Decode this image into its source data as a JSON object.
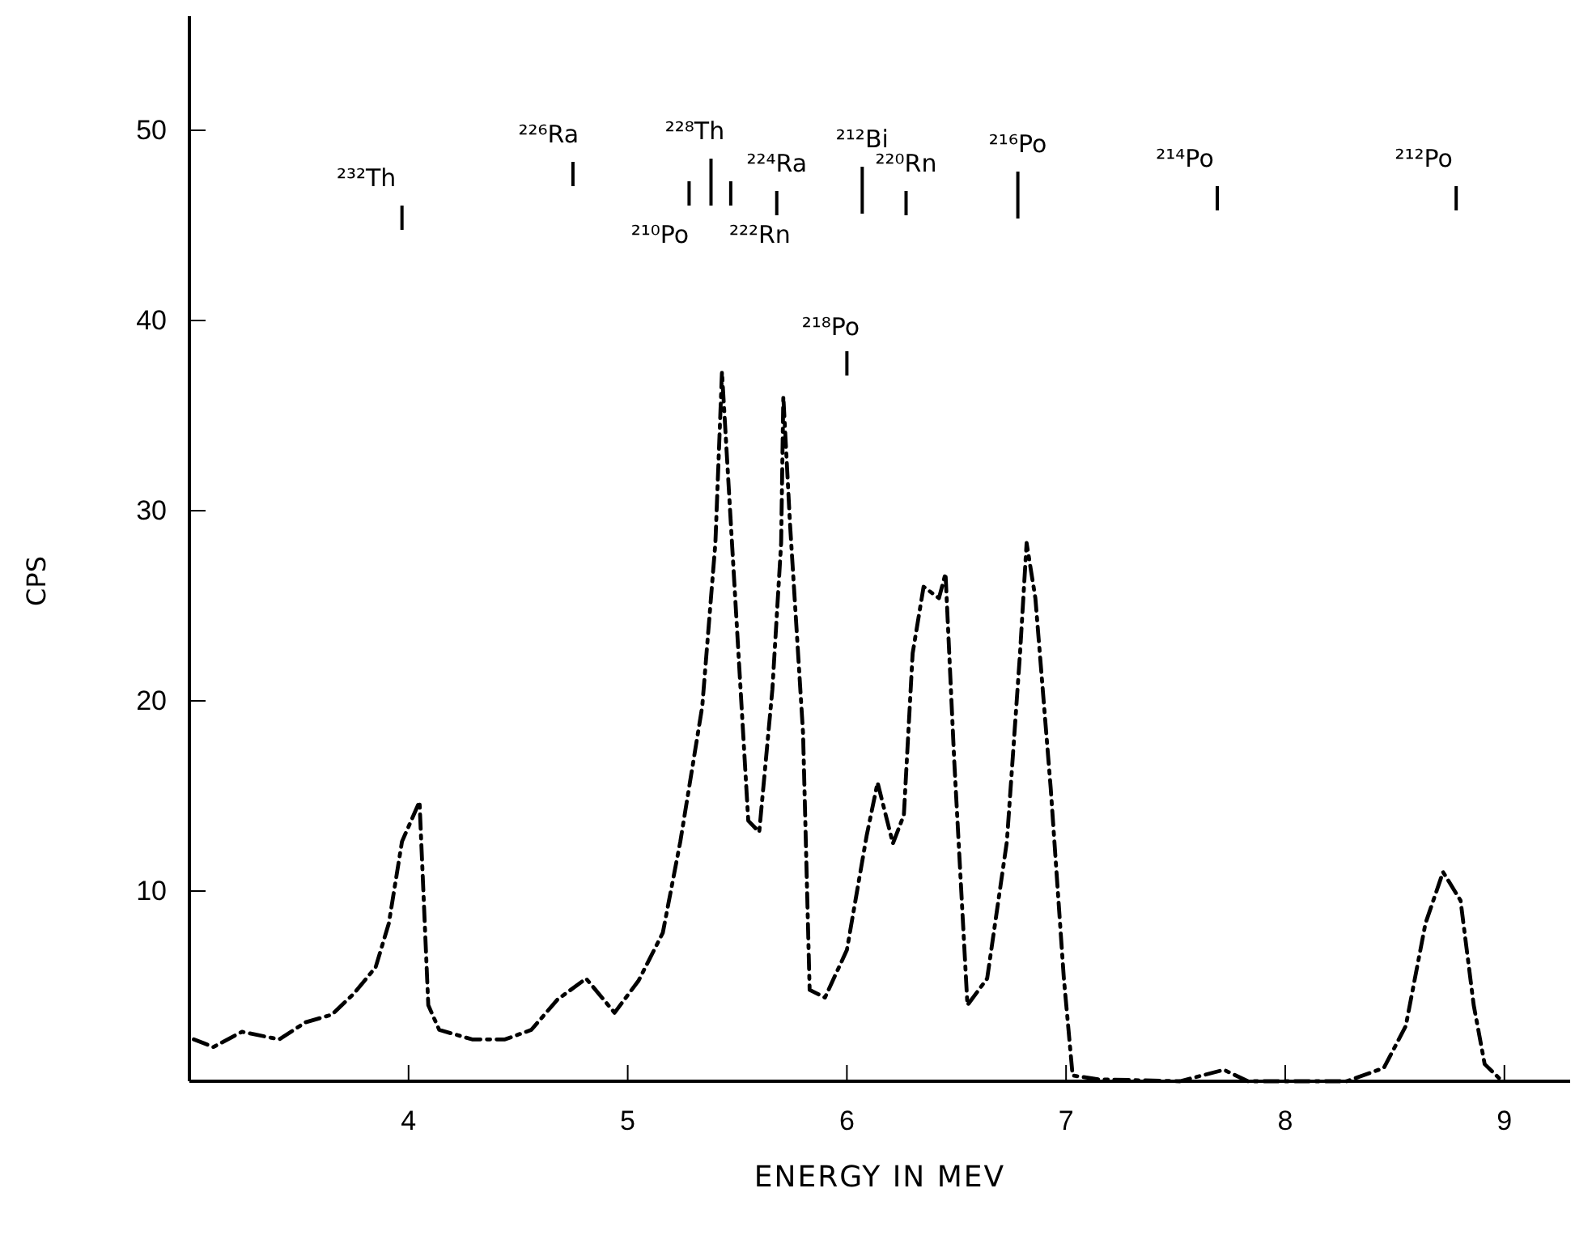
{
  "chart_data": {
    "type": "line",
    "xlabel": "ENERGY IN MEV",
    "ylabel": "CPS",
    "xlim": [
      3,
      9.3
    ],
    "ylim": [
      0,
      56
    ],
    "xticks": [
      4,
      5,
      6,
      7,
      8,
      9
    ],
    "yticks": [
      10,
      20,
      30,
      40,
      50
    ],
    "grid": false,
    "marker": "none",
    "line_style": "dashed",
    "series": [
      {
        "color": "#000000",
        "x": [
          3.02,
          3.11,
          3.24,
          3.41,
          3.53,
          3.65,
          3.75,
          3.85,
          3.91,
          3.97,
          4.05,
          4.09,
          4.14,
          4.29,
          4.44,
          4.56,
          4.68,
          4.81,
          4.94,
          5.05,
          5.16,
          5.24,
          5.34,
          5.4,
          5.43,
          5.55,
          5.6,
          5.66,
          5.7,
          5.71,
          5.74,
          5.8,
          5.83,
          5.9,
          6.0,
          6.09,
          6.14,
          6.21,
          6.26,
          6.3,
          6.35,
          6.42,
          6.45,
          6.49,
          6.55,
          6.64,
          6.73,
          6.79,
          6.82,
          6.86,
          6.93,
          6.99,
          7.03,
          7.15,
          7.52,
          7.72,
          7.83,
          8.28,
          8.45,
          8.55,
          8.64,
          8.72,
          8.8,
          8.86,
          8.91,
          8.99
        ],
        "values": [
          2.2,
          1.8,
          2.6,
          2.2,
          3.1,
          3.5,
          4.6,
          6.0,
          8.3,
          12.6,
          14.7,
          4.0,
          2.7,
          2.2,
          2.2,
          2.7,
          4.3,
          5.4,
          3.6,
          5.3,
          7.8,
          12.6,
          19.7,
          28.3,
          37.3,
          13.7,
          13.1,
          20.6,
          28.3,
          36.0,
          29.4,
          18.3,
          4.8,
          4.4,
          6.9,
          12.9,
          15.7,
          12.5,
          14.0,
          22.5,
          26.0,
          25.4,
          26.7,
          16.8,
          4.0,
          5.4,
          12.6,
          22.5,
          28.3,
          25.4,
          15.4,
          5.4,
          0.3,
          0.1,
          0,
          0.6,
          0,
          0,
          0.7,
          2.9,
          8.3,
          11.0,
          9.5,
          4.0,
          0.9,
          0
        ]
      }
    ],
    "ref_lines": [
      {
        "axis": "x",
        "value": 3.97,
        "label": "²³²Th"
      },
      {
        "axis": "x",
        "value": 4.75,
        "label": "²²⁶Ra"
      },
      {
        "axis": "x",
        "value": 5.38,
        "label": "²²⁸Th"
      },
      {
        "axis": "x",
        "value": 5.28,
        "label": "²¹⁰Po"
      },
      {
        "axis": "x",
        "value": 5.47,
        "label": "²²²Rn"
      },
      {
        "axis": "x",
        "value": 5.68,
        "label": "²²⁴Ra"
      },
      {
        "axis": "x",
        "value": 6.07,
        "label": "²¹²Bi"
      },
      {
        "axis": "x",
        "value": 6.27,
        "label": "²²⁰Rn"
      },
      {
        "axis": "x",
        "value": 6.78,
        "label": "²¹⁶Po"
      },
      {
        "axis": "x",
        "value": 7.69,
        "label": "²¹⁴Po"
      },
      {
        "axis": "x",
        "value": 8.78,
        "label": "²¹²Po"
      },
      {
        "axis": "x",
        "value": 6.0,
        "label": "²¹⁸Po"
      }
    ]
  }
}
